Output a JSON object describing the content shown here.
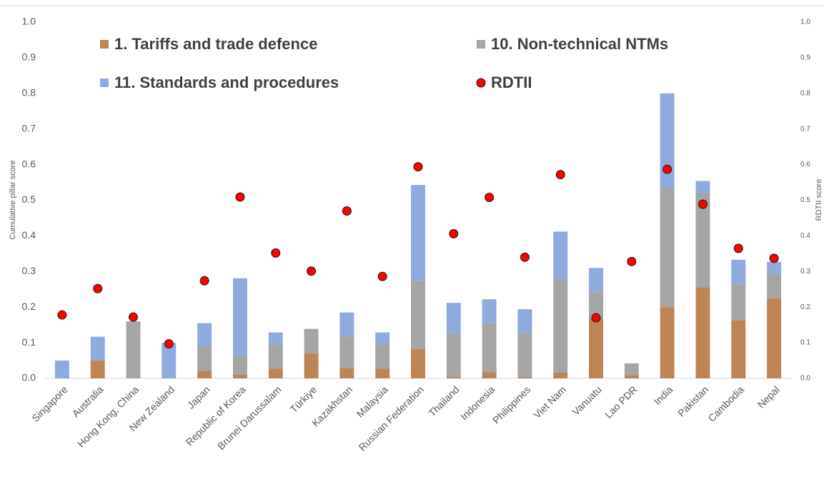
{
  "chart_data": {
    "type": "bar",
    "stacked": true,
    "categories": [
      "Singapore",
      "Australia",
      "Hong Kong, China",
      "New Zealand",
      "Japan",
      "Republic of Korea",
      "Brunei Darussalam",
      "Türkiye",
      "Kazakhstan",
      "Malaysia",
      "Russian Federation",
      "Thailand",
      "Indonesia",
      "Philippines",
      "Viet Nam",
      "Vanuatu",
      "Lao PDR",
      "India",
      "Pakistan",
      "Cambodia",
      "Nepal"
    ],
    "series": [
      {
        "name": "1. Tariffs and trade defence",
        "color": "#bd8455",
        "values": [
          0,
          0.05,
          0,
          0,
          0.02,
          0.01,
          0.027,
          0.07,
          0.028,
          0.027,
          0.082,
          0.004,
          0.017,
          0.003,
          0.016,
          0.17,
          0.008,
          0.2,
          0.256,
          0.163,
          0.225
        ]
      },
      {
        "name": "10. Non-technical NTMs",
        "color": "#a5a5a5",
        "values": [
          0,
          0,
          0.16,
          0,
          0.07,
          0.053,
          0.068,
          0.069,
          0.09,
          0.068,
          0.193,
          0.123,
          0.138,
          0.124,
          0.262,
          0.074,
          0.034,
          0.335,
          0.264,
          0.103,
          0.068
        ]
      },
      {
        "name": "11. Standards and procedures",
        "color": "#8fabdd",
        "values": [
          0.05,
          0.067,
          0,
          0.1,
          0.065,
          0.218,
          0.034,
          0,
          0.067,
          0.034,
          0.268,
          0.085,
          0.067,
          0.067,
          0.134,
          0.066,
          0,
          0.265,
          0.034,
          0.067,
          0.034
        ]
      },
      {
        "name": "RDTII",
        "type": "scatter",
        "axis": "y2",
        "color": "#ff0000",
        "values": [
          0.178,
          0.252,
          0.172,
          0.097,
          0.274,
          0.509,
          0.352,
          0.301,
          0.47,
          0.286,
          0.594,
          0.406,
          0.508,
          0.34,
          0.572,
          0.17,
          0.328,
          0.587,
          0.489,
          0.365,
          0.337
        ]
      }
    ],
    "ylabel": "Cumulative pillar score",
    "y2label": "RDTII score",
    "ylim": [
      0,
      1
    ],
    "yticks": [
      {
        "value": 0,
        "label": "0.0"
      },
      0.1,
      0.2,
      0.3,
      0.4,
      0.5,
      0.6,
      0.7,
      0.8,
      0.9,
      {
        "value": 1,
        "label": "1.0"
      }
    ],
    "y2lim": [
      0,
      1
    ],
    "y2ticks": [
      {
        "value": 0,
        "label": "0.0"
      },
      0.1,
      0.2,
      0.3,
      0.4,
      0.5,
      0.6,
      0.7,
      0.8,
      0.9,
      {
        "value": 1,
        "label": "1.0"
      }
    ],
    "grid": false
  }
}
